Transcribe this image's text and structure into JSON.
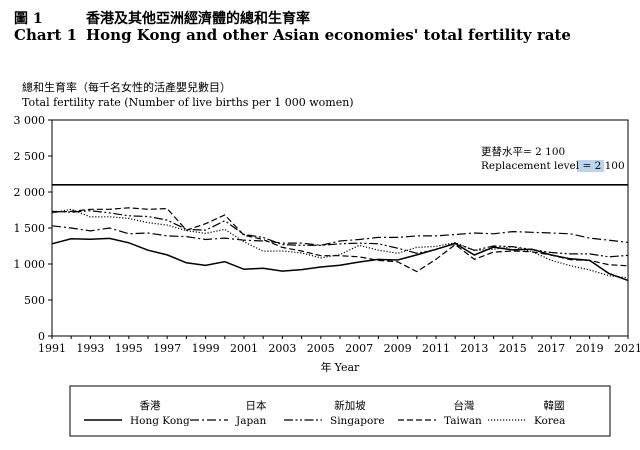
{
  "header": {
    "zh_number": "圖 1",
    "zh_title": "香港及其他亞洲經濟體的總和生育率",
    "en_number": "Chart 1",
    "en_title": "Hong Kong and other Asian economies' total fertility rate"
  },
  "chart_data": {
    "type": "line",
    "ylabel_zh": "總和生育率（每千名女性的活產嬰兒數目）",
    "ylabel": "Total fertility rate (Number of live births per 1 000 women)",
    "xlabel_zh": "年",
    "xlabel": "Year",
    "ylim": [
      0,
      3000
    ],
    "yticks": [
      0,
      500,
      1000,
      1500,
      2000,
      2500,
      3000
    ],
    "ytick_labels": [
      "0",
      "500",
      "1 000",
      "1 500",
      "2 000",
      "2 500",
      "3 000"
    ],
    "xlim": [
      1991,
      2021
    ],
    "xticks": [
      1991,
      1993,
      1995,
      1997,
      1999,
      2001,
      2003,
      2005,
      2007,
      2009,
      2011,
      2013,
      2015,
      2017,
      2019,
      2021
    ],
    "x": [
      1991,
      1992,
      1993,
      1994,
      1995,
      1996,
      1997,
      1998,
      1999,
      2000,
      2001,
      2002,
      2003,
      2004,
      2005,
      2006,
      2007,
      2008,
      2009,
      2010,
      2011,
      2012,
      2013,
      2014,
      2015,
      2016,
      2017,
      2018,
      2019,
      2020,
      2021
    ],
    "grid": false,
    "legend_position": "bottom",
    "reference_line": {
      "value": 2100,
      "label_zh": "更替水平= 2 100",
      "label_en": "Replacement level = ",
      "label_value": "2 100"
    },
    "series": [
      {
        "name_zh": "香港",
        "name": "Hong Kong",
        "style": "solid",
        "values": [
          1281,
          1350,
          1345,
          1356,
          1295,
          1191,
          1127,
          1016,
          981,
          1032,
          927,
          941,
          901,
          922,
          959,
          984,
          1028,
          1064,
          1055,
          1127,
          1204,
          1285,
          1125,
          1235,
          1196,
          1205,
          1125,
          1072,
          1050,
          870,
          772
        ]
      },
      {
        "name_zh": "日本",
        "name": "Japan",
        "style": "dashdot",
        "values": [
          1530,
          1500,
          1460,
          1500,
          1420,
          1430,
          1390,
          1380,
          1340,
          1360,
          1330,
          1320,
          1290,
          1290,
          1260,
          1320,
          1340,
          1370,
          1370,
          1390,
          1390,
          1410,
          1430,
          1420,
          1450,
          1440,
          1430,
          1420,
          1360,
          1330,
          1300
        ]
      },
      {
        "name_zh": "新加坡",
        "name": "Singapore",
        "style": "dashdotdot",
        "values": [
          1730,
          1720,
          1740,
          1710,
          1670,
          1660,
          1610,
          1480,
          1470,
          1600,
          1410,
          1370,
          1270,
          1260,
          1260,
          1280,
          1290,
          1280,
          1220,
          1150,
          1200,
          1290,
          1190,
          1250,
          1240,
          1200,
          1160,
          1140,
          1140,
          1100,
          1120
        ]
      },
      {
        "name_zh": "台灣",
        "name": "Taiwan",
        "style": "dashed",
        "values": [
          1720,
          1730,
          1760,
          1760,
          1780,
          1760,
          1770,
          1470,
          1560,
          1680,
          1400,
          1340,
          1230,
          1180,
          1115,
          1115,
          1100,
          1050,
          1030,
          895,
          1065,
          1270,
          1065,
          1165,
          1180,
          1170,
          1125,
          1060,
          1050,
          990,
          975
        ]
      },
      {
        "name_zh": "韓國",
        "name": "Korea",
        "style": "dotted",
        "values": [
          1710,
          1760,
          1654,
          1656,
          1634,
          1574,
          1540,
          1464,
          1425,
          1480,
          1309,
          1178,
          1180,
          1154,
          1085,
          1130,
          1260,
          1192,
          1149,
          1230,
          1244,
          1297,
          1187,
          1205,
          1239,
          1172,
          1052,
          977,
          918,
          837,
          808
        ]
      }
    ]
  }
}
